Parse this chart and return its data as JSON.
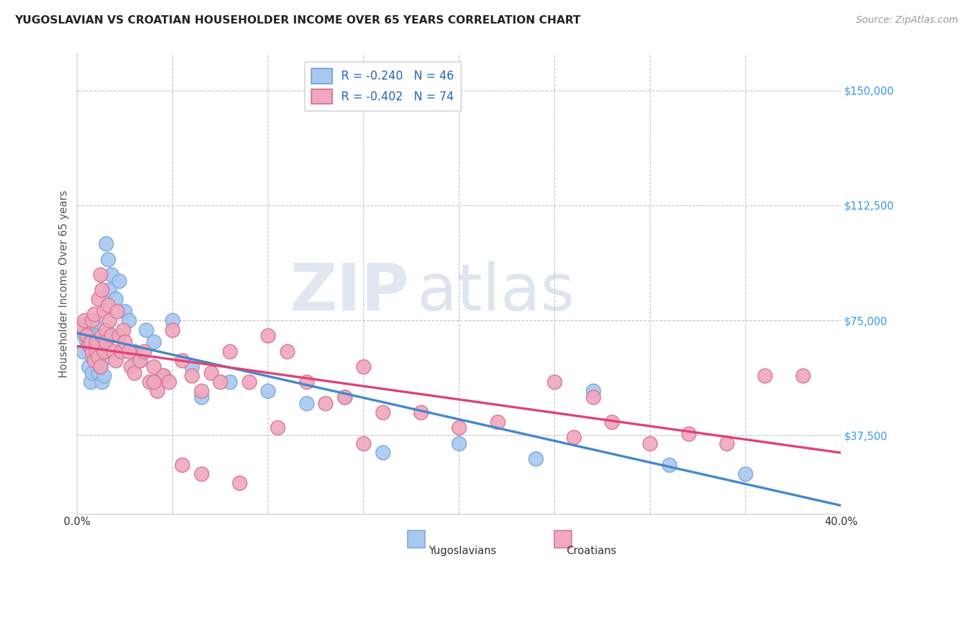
{
  "title": "YUGOSLAVIAN VS CROATIAN HOUSEHOLDER INCOME OVER 65 YEARS CORRELATION CHART",
  "source": "Source: ZipAtlas.com",
  "ylabel": "Householder Income Over 65 years",
  "ytick_values": [
    150000,
    112500,
    75000,
    37500
  ],
  "xmin": 0.0,
  "xmax": 0.4,
  "ymin": 12000,
  "ymax": 162000,
  "legend_line1": "R = -0.240   N = 46",
  "legend_line2": "R = -0.402   N = 74",
  "legend_labels": [
    "Yugoslavians",
    "Croatians"
  ],
  "blue_color": "#a8c8f0",
  "pink_color": "#f0a8bc",
  "blue_edge": "#7baad8",
  "pink_edge": "#d87898",
  "line_blue": "#4488cc",
  "line_pink": "#dd4477",
  "watermark_zip": "ZIP",
  "watermark_atlas": "atlas",
  "yug_x": [
    0.003,
    0.004,
    0.005,
    0.006,
    0.007,
    0.007,
    0.008,
    0.008,
    0.009,
    0.009,
    0.01,
    0.01,
    0.011,
    0.011,
    0.012,
    0.012,
    0.013,
    0.013,
    0.014,
    0.014,
    0.015,
    0.016,
    0.017,
    0.018,
    0.02,
    0.022,
    0.025,
    0.027,
    0.03,
    0.033,
    0.036,
    0.04,
    0.045,
    0.05,
    0.06,
    0.065,
    0.08,
    0.1,
    0.12,
    0.14,
    0.16,
    0.2,
    0.24,
    0.27,
    0.31,
    0.35
  ],
  "yug_y": [
    65000,
    70000,
    68000,
    60000,
    72000,
    55000,
    63000,
    58000,
    67000,
    74000,
    62000,
    70000,
    65000,
    58000,
    68000,
    60000,
    55000,
    62000,
    57000,
    65000,
    100000,
    95000,
    85000,
    90000,
    82000,
    88000,
    78000,
    75000,
    65000,
    62000,
    72000,
    68000,
    57000,
    75000,
    60000,
    50000,
    55000,
    52000,
    48000,
    50000,
    32000,
    35000,
    30000,
    52000,
    28000,
    25000
  ],
  "cro_x": [
    0.003,
    0.004,
    0.005,
    0.006,
    0.007,
    0.008,
    0.008,
    0.009,
    0.009,
    0.01,
    0.01,
    0.011,
    0.011,
    0.012,
    0.012,
    0.013,
    0.013,
    0.014,
    0.014,
    0.015,
    0.015,
    0.016,
    0.017,
    0.018,
    0.019,
    0.02,
    0.021,
    0.022,
    0.023,
    0.024,
    0.025,
    0.027,
    0.028,
    0.03,
    0.033,
    0.035,
    0.038,
    0.04,
    0.042,
    0.045,
    0.048,
    0.05,
    0.055,
    0.06,
    0.065,
    0.07,
    0.075,
    0.08,
    0.09,
    0.1,
    0.11,
    0.12,
    0.13,
    0.14,
    0.15,
    0.16,
    0.18,
    0.2,
    0.22,
    0.25,
    0.27,
    0.28,
    0.3,
    0.32,
    0.34,
    0.36,
    0.38,
    0.26,
    0.15,
    0.04,
    0.055,
    0.065,
    0.085,
    0.105
  ],
  "cro_y": [
    73000,
    75000,
    70000,
    67000,
    68000,
    65000,
    75000,
    62000,
    77000,
    65000,
    68000,
    63000,
    82000,
    60000,
    90000,
    85000,
    70000,
    65000,
    78000,
    72000,
    68000,
    80000,
    75000,
    70000,
    65000,
    62000,
    78000,
    70000,
    65000,
    72000,
    68000,
    65000,
    60000,
    58000,
    62000,
    65000,
    55000,
    60000,
    52000,
    57000,
    55000,
    72000,
    62000,
    57000,
    52000,
    58000,
    55000,
    65000,
    55000,
    70000,
    65000,
    55000,
    48000,
    50000,
    60000,
    45000,
    45000,
    40000,
    42000,
    55000,
    50000,
    42000,
    35000,
    38000,
    35000,
    57000,
    57000,
    37000,
    35000,
    55000,
    28000,
    25000,
    22000,
    40000
  ]
}
